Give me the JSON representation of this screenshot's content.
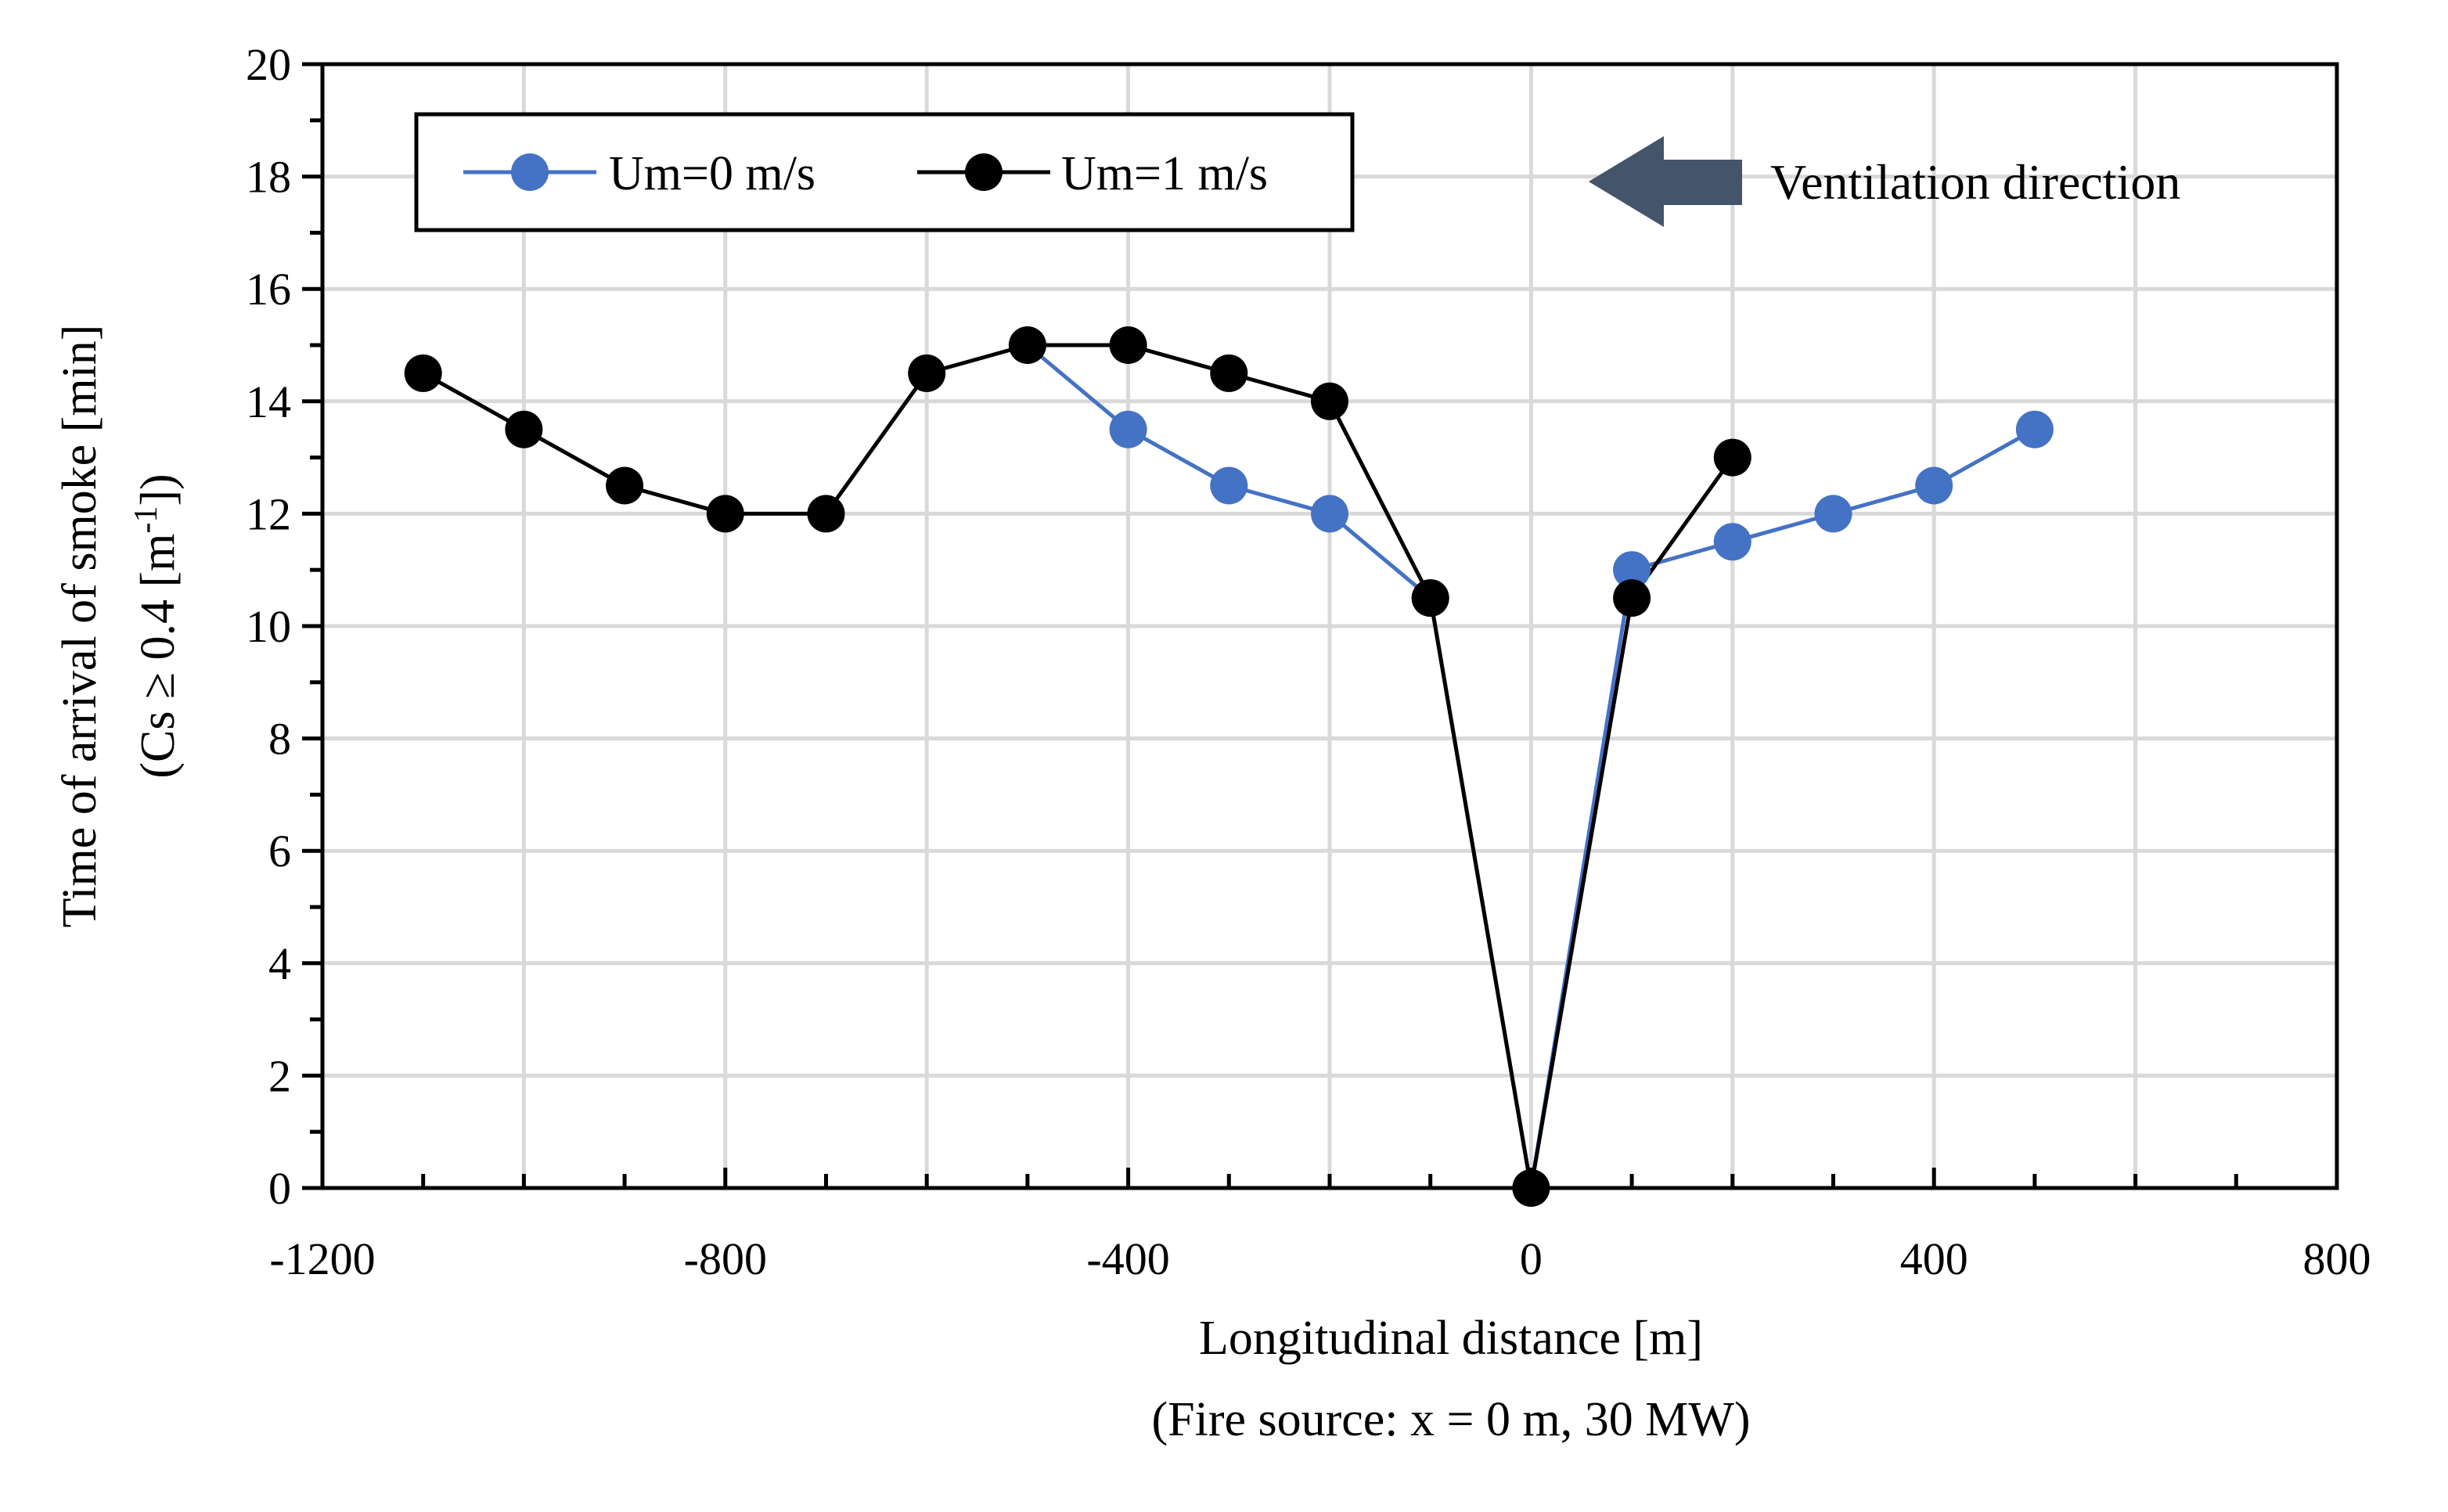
{
  "chart_data": {
    "type": "line",
    "title": "",
    "xlabel": "Longitudinal distance [m]",
    "xlabel_sub": "(Fire source: x = 0 m, 30 MW)",
    "ylabel": "Time of arrival of smoke [min]",
    "ylabel_sub": {
      "prefix": "(Cs ≥ 0.4 [m",
      "sup": "-1",
      "suffix": "])"
    },
    "xlim": [
      -1200,
      800
    ],
    "ylim": [
      0,
      20
    ],
    "xticks": [
      -1200,
      -800,
      -400,
      0,
      400,
      800
    ],
    "xtick_labels": [
      "-1200",
      "-800",
      "-400",
      "0",
      "400",
      "800"
    ],
    "yticks": [
      0,
      2,
      4,
      6,
      8,
      10,
      12,
      14,
      16,
      18,
      20
    ],
    "ytick_labels": [
      "0",
      "2",
      "4",
      "6",
      "8",
      "10",
      "12",
      "14",
      "16",
      "18",
      "20"
    ],
    "grid": true,
    "legend_position": "top-left",
    "series": [
      {
        "name": "Um=0 m/s",
        "color": "#4472C4",
        "x": [
          -500,
          -400,
          -300,
          -200,
          -100,
          0,
          100,
          200,
          300,
          400,
          500
        ],
        "y": [
          15,
          13.5,
          12.5,
          12,
          10.5,
          0,
          11,
          11.5,
          12,
          12.5,
          13.5
        ]
      },
      {
        "name": "Um=1 m/s",
        "color": "#000000",
        "x": [
          -1100,
          -1000,
          -900,
          -800,
          -700,
          -600,
          -500,
          -400,
          -300,
          -200,
          -100,
          0,
          100,
          200
        ],
        "y": [
          14.5,
          13.5,
          12.5,
          12,
          12,
          14.5,
          15,
          15,
          14.5,
          14,
          10.5,
          0,
          10.5,
          13
        ]
      }
    ],
    "annotation": {
      "text": "Ventilation direction",
      "arrow_direction": "left",
      "arrow_color": "#44546A"
    }
  }
}
